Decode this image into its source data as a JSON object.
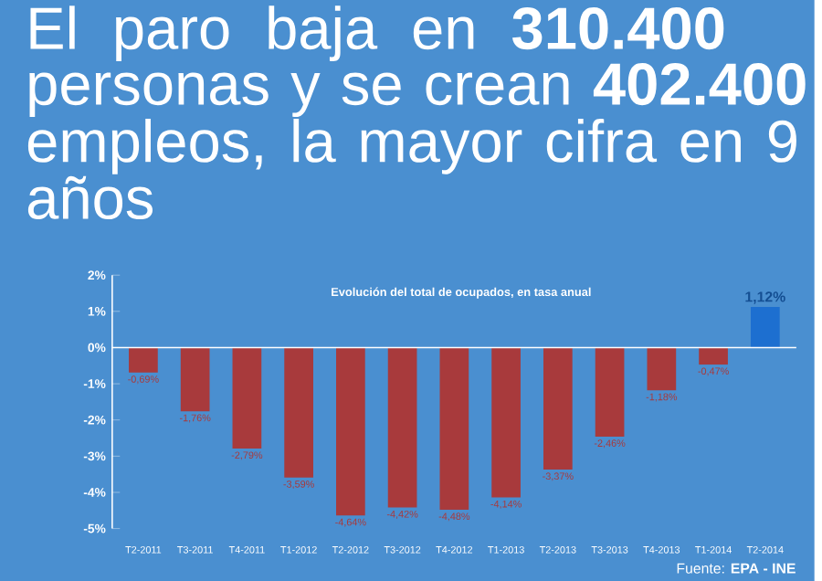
{
  "chart_data": {
    "type": "bar",
    "title": "El paro baja en **310.400** personas y se crean **402.400** empleos, la mayor cifra en 9 años",
    "subtitle": "Evolución del total de ocupados, en tasa anual",
    "categories": [
      "T2-2011",
      "T3-2011",
      "T4-2011",
      "T1-2012",
      "T2-2012",
      "T3-2012",
      "T4-2012",
      "T1-2013",
      "T2-2013",
      "T3-2013",
      "T4-2013",
      "T1-2014",
      "T2-2014"
    ],
    "values": [
      -0.69,
      -1.76,
      -2.79,
      -3.59,
      -4.64,
      -4.42,
      -4.48,
      -4.14,
      -3.37,
      -2.46,
      -1.18,
      -0.47,
      1.12
    ],
    "value_labels": [
      "-0,69%",
      "-1,76%",
      "-2,79%",
      "-3,59%",
      "-4,64%",
      "-4,42%",
      "-4,48%",
      "-4,14%",
      "-3,37%",
      "-2,46%",
      "-1,18%",
      "-0,47%",
      "1,12%"
    ],
    "colors": [
      "#a83a3c",
      "#a83a3c",
      "#a83a3c",
      "#a83a3c",
      "#a83a3c",
      "#a83a3c",
      "#a83a3c",
      "#a83a3c",
      "#a83a3c",
      "#a83a3c",
      "#a83a3c",
      "#a83a3c",
      "#1d6fd0"
    ],
    "ylim": [
      -5,
      2
    ],
    "yticks": [
      {
        "value": 2,
        "label": "2%"
      },
      {
        "value": 1,
        "label": "1%"
      },
      {
        "value": 0,
        "label": "0%"
      },
      {
        "value": -1,
        "label": "-1%"
      },
      {
        "value": -2,
        "label": "-2%"
      },
      {
        "value": -3,
        "label": "-3%"
      },
      {
        "value": -4,
        "label": "-4%"
      },
      {
        "value": -5,
        "label": "-5%"
      }
    ],
    "ref_lines": [
      {
        "axis": "y",
        "value": 0,
        "color": "#ffffff"
      }
    ],
    "annotations": [
      "Fuente: **EPA - INE**"
    ],
    "grid": false
  }
}
